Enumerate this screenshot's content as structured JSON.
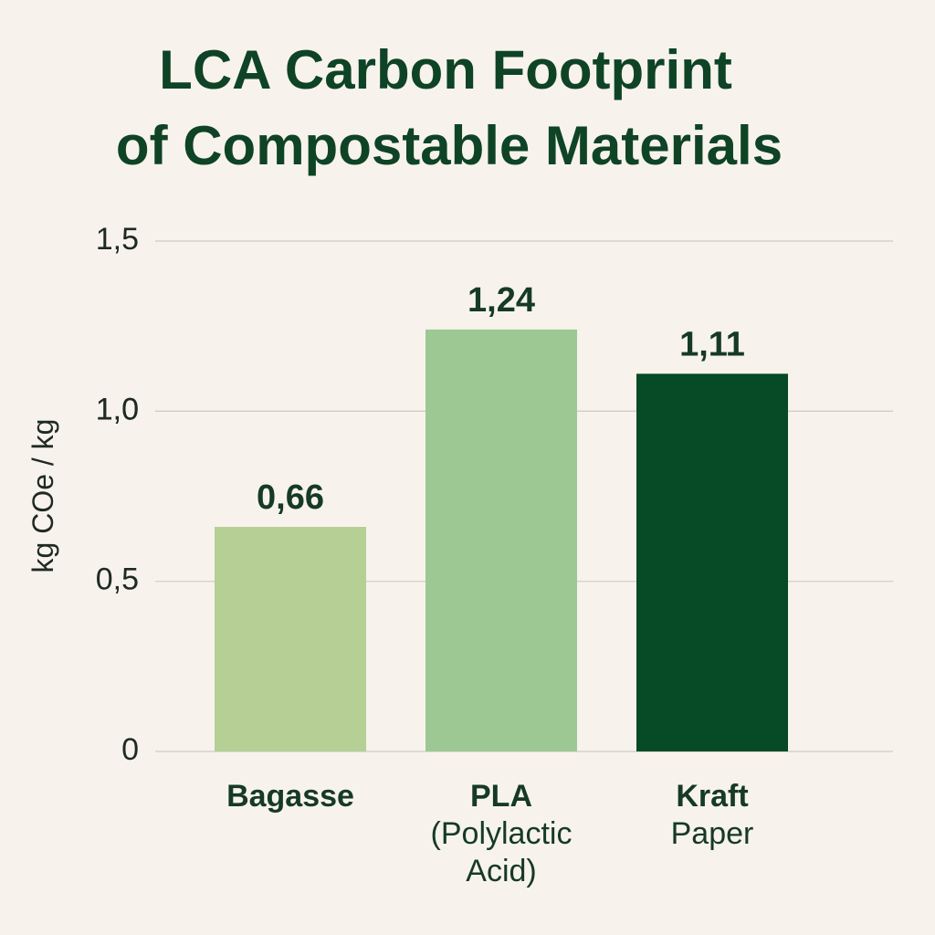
{
  "chart_data": {
    "type": "bar",
    "title": [
      "LCA Carbon Footprint",
      "of Compostable Materials"
    ],
    "y_label": "kg COe / kg",
    "categories": [
      "Bagasse",
      "PLA\n(Polylactic\nAcid)",
      "Kraft\nPaper"
    ],
    "values": [
      0.66,
      1.24,
      1.11
    ],
    "value_labels": [
      "0,66",
      "1,24",
      "1,11"
    ],
    "colors": [
      "#b5cf94",
      "#9dc893",
      "#064a26"
    ],
    "ylim": [
      0,
      1.5
    ],
    "yticks": [
      {
        "value": 1.5,
        "label": "1,5"
      },
      {
        "value": 1.0,
        "label": "1,0"
      },
      {
        "value": 0.5,
        "label": "0,5"
      },
      {
        "value": 1.0,
        "label": "1,0"
      },
      0
    ],
    "grid": true
  }
}
